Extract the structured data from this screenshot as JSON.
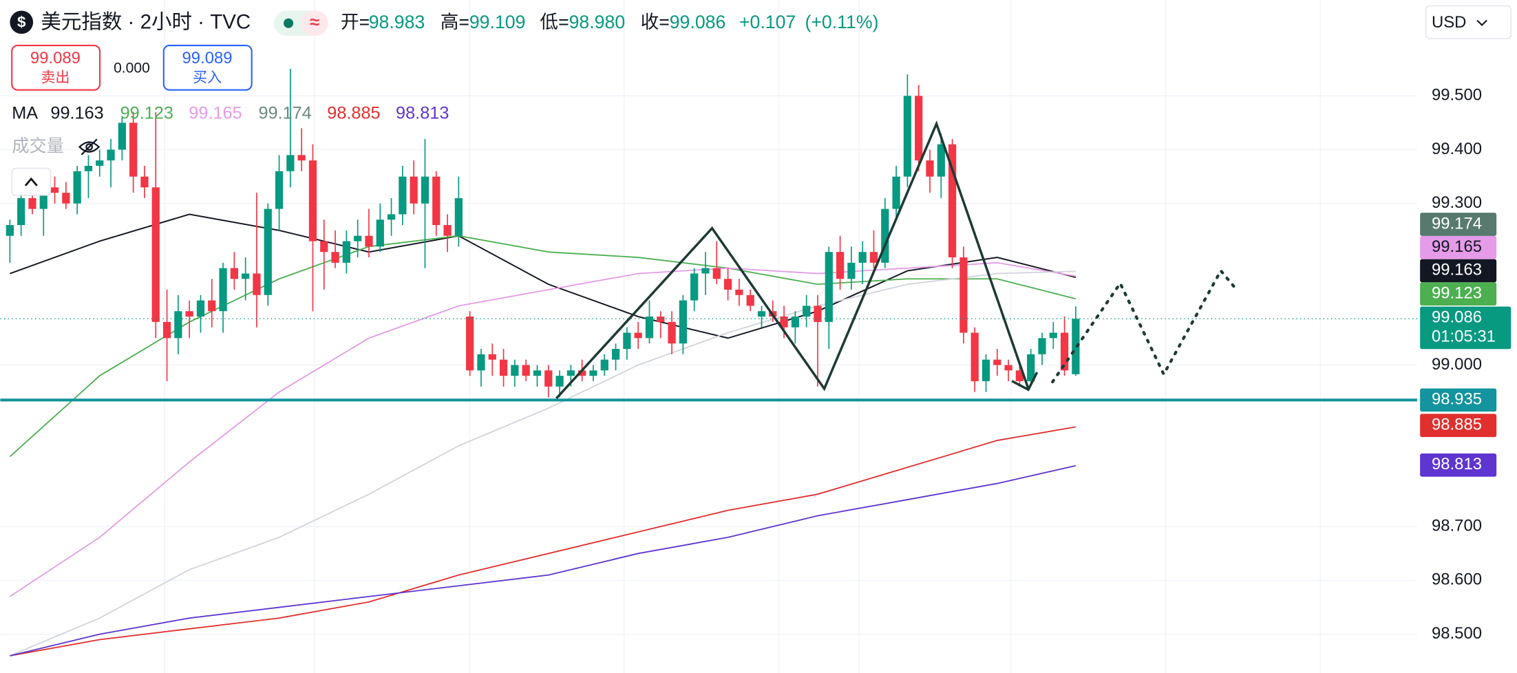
{
  "header": {
    "symbol": "美元指数 · 2小时 · TVC",
    "currency": "USD",
    "ohlc": [
      {
        "label": "开=",
        "value": "98.983"
      },
      {
        "label": "高=",
        "value": "99.109"
      },
      {
        "label": "低=",
        "value": "98.980"
      },
      {
        "label": "收=",
        "value": "99.086"
      }
    ],
    "change": "+0.107",
    "change_pct": "(+0.11%)",
    "sell": {
      "price": "99.089",
      "label": "卖出"
    },
    "spread": "0.000",
    "buy": {
      "price": "99.089",
      "label": "买入"
    },
    "ma_label": "MA",
    "volume_label": "成交量"
  },
  "chart_data": {
    "type": "candlestick",
    "up_color": "#089981",
    "down_color": "#f23645",
    "candles": [
      [
        99.24,
        99.27,
        99.19,
        99.26
      ],
      [
        99.26,
        99.33,
        99.24,
        99.31
      ],
      [
        99.31,
        99.36,
        99.28,
        99.29
      ],
      [
        99.29,
        99.34,
        99.24,
        99.33
      ],
      [
        99.33,
        99.35,
        99.3,
        99.32
      ],
      [
        99.32,
        99.34,
        99.29,
        99.3
      ],
      [
        99.3,
        99.37,
        99.28,
        99.36
      ],
      [
        99.36,
        99.39,
        99.31,
        99.37
      ],
      [
        99.37,
        99.4,
        99.35,
        99.38
      ],
      [
        99.38,
        99.42,
        99.33,
        99.4
      ],
      [
        99.4,
        99.46,
        99.38,
        99.45
      ],
      [
        99.45,
        99.47,
        99.32,
        99.35
      ],
      [
        99.35,
        99.37,
        99.31,
        99.33
      ],
      [
        99.33,
        99.47,
        99.05,
        99.08
      ],
      [
        99.08,
        99.14,
        98.97,
        99.05
      ],
      [
        99.05,
        99.13,
        99.02,
        99.1
      ],
      [
        99.1,
        99.12,
        99.05,
        99.09
      ],
      [
        99.09,
        99.13,
        99.06,
        99.12
      ],
      [
        99.12,
        99.16,
        99.07,
        99.1
      ],
      [
        99.1,
        99.19,
        99.06,
        99.18
      ],
      [
        99.18,
        99.21,
        99.14,
        99.16
      ],
      [
        99.16,
        99.2,
        99.12,
        99.17
      ],
      [
        99.17,
        99.32,
        99.07,
        99.13
      ],
      [
        99.13,
        99.3,
        99.11,
        99.29
      ],
      [
        99.29,
        99.39,
        99.25,
        99.36
      ],
      [
        99.36,
        99.55,
        99.33,
        99.39
      ],
      [
        99.39,
        99.44,
        99.36,
        99.38
      ],
      [
        99.38,
        99.41,
        99.1,
        99.23
      ],
      [
        99.23,
        99.27,
        99.14,
        99.21
      ],
      [
        99.21,
        99.25,
        99.18,
        99.19
      ],
      [
        99.19,
        99.25,
        99.17,
        99.23
      ],
      [
        99.23,
        99.27,
        99.2,
        99.24
      ],
      [
        99.24,
        99.29,
        99.2,
        99.22
      ],
      [
        99.22,
        99.3,
        99.21,
        99.27
      ],
      [
        99.27,
        99.31,
        99.24,
        99.28
      ],
      [
        99.28,
        99.37,
        99.26,
        99.35
      ],
      [
        99.35,
        99.38,
        99.28,
        99.3
      ],
      [
        99.3,
        99.42,
        99.18,
        99.35
      ],
      [
        99.35,
        99.36,
        99.24,
        99.26
      ],
      [
        99.26,
        99.28,
        99.21,
        99.24
      ],
      [
        99.24,
        99.35,
        99.22,
        99.31
      ],
      [
        99.09,
        99.1,
        98.98,
        98.99
      ],
      [
        98.99,
        99.03,
        98.96,
        99.02
      ],
      [
        99.02,
        99.04,
        98.98,
        99.01
      ],
      [
        99.01,
        99.03,
        98.96,
        98.98
      ],
      [
        98.98,
        99.01,
        98.96,
        99.0
      ],
      [
        99.0,
        99.01,
        98.97,
        98.98
      ],
      [
        98.98,
        99.0,
        98.96,
        98.99
      ],
      [
        98.99,
        99.0,
        98.94,
        98.96
      ],
      [
        98.96,
        98.99,
        98.94,
        98.98
      ],
      [
        98.98,
        99.0,
        98.96,
        98.99
      ],
      [
        98.99,
        99.01,
        98.97,
        98.98
      ],
      [
        98.98,
        99.0,
        98.97,
        98.99
      ],
      [
        98.99,
        99.02,
        98.98,
        99.01
      ],
      [
        99.01,
        99.04,
        98.99,
        99.03
      ],
      [
        99.03,
        99.07,
        99.01,
        99.06
      ],
      [
        99.06,
        99.08,
        99.03,
        99.05
      ],
      [
        99.05,
        99.12,
        99.04,
        99.09
      ],
      [
        99.09,
        99.1,
        99.05,
        99.08
      ],
      [
        99.08,
        99.1,
        99.02,
        99.04
      ],
      [
        99.04,
        99.13,
        99.02,
        99.12
      ],
      [
        99.12,
        99.18,
        99.1,
        99.17
      ],
      [
        99.17,
        99.21,
        99.13,
        99.18
      ],
      [
        99.18,
        99.23,
        99.15,
        99.16
      ],
      [
        99.16,
        99.18,
        99.12,
        99.14
      ],
      [
        99.14,
        99.16,
        99.11,
        99.13
      ],
      [
        99.13,
        99.14,
        99.1,
        99.11
      ],
      [
        99.09,
        99.11,
        99.07,
        99.1
      ],
      [
        99.1,
        99.12,
        99.08,
        99.09
      ],
      [
        99.09,
        99.11,
        99.05,
        99.07
      ],
      [
        99.07,
        99.1,
        99.04,
        99.09
      ],
      [
        99.09,
        99.13,
        99.07,
        99.11
      ],
      [
        99.11,
        99.13,
        98.96,
        99.08
      ],
      [
        99.08,
        99.22,
        99.03,
        99.21
      ],
      [
        99.21,
        99.24,
        99.14,
        99.16
      ],
      [
        99.16,
        99.22,
        99.14,
        99.19
      ],
      [
        99.19,
        99.23,
        99.15,
        99.21
      ],
      [
        99.21,
        99.25,
        99.18,
        99.19
      ],
      [
        99.19,
        99.31,
        99.18,
        99.29
      ],
      [
        99.29,
        99.37,
        99.27,
        99.35
      ],
      [
        99.35,
        99.54,
        99.33,
        99.5
      ],
      [
        99.5,
        99.52,
        99.36,
        99.38
      ],
      [
        99.38,
        99.4,
        99.32,
        99.35
      ],
      [
        99.35,
        99.43,
        99.31,
        99.41
      ],
      [
        99.41,
        99.42,
        99.18,
        99.2
      ],
      [
        99.2,
        99.22,
        99.04,
        99.06
      ],
      [
        99.06,
        99.07,
        98.95,
        98.97
      ],
      [
        98.97,
        99.02,
        98.95,
        99.01
      ],
      [
        99.01,
        99.03,
        98.98,
        99.0
      ],
      [
        99.0,
        99.01,
        98.97,
        98.99
      ],
      [
        98.99,
        99.0,
        98.96,
        98.97
      ],
      [
        98.97,
        99.03,
        98.96,
        99.02
      ],
      [
        99.02,
        99.06,
        99.0,
        99.05
      ],
      [
        99.05,
        99.08,
        99.03,
        99.06
      ],
      [
        99.06,
        99.09,
        98.98,
        98.99
      ],
      [
        98.983,
        99.109,
        98.98,
        99.086
      ]
    ],
    "x": [
      0,
      8,
      16,
      24,
      32,
      40,
      48,
      56,
      64,
      72,
      80,
      88,
      95
    ],
    "series": [
      {
        "color": "#131722",
        "values": [
          99.17,
          99.23,
          99.28,
          99.25,
          99.21,
          99.24,
          99.15,
          99.09,
          99.05,
          99.1,
          99.175,
          99.2,
          99.163
        ]
      },
      {
        "color": "#4caf50",
        "values": [
          98.83,
          98.98,
          99.08,
          99.16,
          99.22,
          99.24,
          99.21,
          99.2,
          99.18,
          99.15,
          99.16,
          99.16,
          99.123
        ]
      },
      {
        "color": "#e59be8",
        "values": [
          98.57,
          98.68,
          98.82,
          98.95,
          99.05,
          99.11,
          99.14,
          99.17,
          99.18,
          99.17,
          99.18,
          99.19,
          99.165
        ]
      },
      {
        "color": "#d1d4dc",
        "values": [
          98.46,
          98.53,
          98.62,
          98.68,
          98.76,
          98.85,
          98.92,
          99.0,
          99.06,
          99.11,
          99.15,
          99.17,
          99.174
        ]
      },
      {
        "color": "#e0302e",
        "values": [
          98.46,
          98.49,
          98.51,
          98.53,
          98.56,
          98.61,
          98.65,
          98.69,
          98.73,
          98.76,
          98.81,
          98.86,
          98.885
        ]
      },
      {
        "color": "#5e35d1",
        "values": [
          98.46,
          98.5,
          98.53,
          98.55,
          98.57,
          98.59,
          98.61,
          98.65,
          98.68,
          98.72,
          98.75,
          98.78,
          98.813
        ]
      }
    ],
    "level": {
      "value": 98.935,
      "color": "#13949e"
    },
    "countdown": "01:05:31",
    "xlim": [
      -0.86,
      125.43
    ],
    "ylim": [
      98.428,
      99.678
    ],
    "yticks": [
      {
        "value": 98.5,
        "label": "98.500"
      },
      {
        "value": 98.6,
        "label": "98.600"
      },
      {
        "value": 98.7,
        "label": "98.700"
      },
      {
        "value": 99.0,
        "label": "99.000"
      },
      {
        "value": 99.3,
        "label": "99.300"
      },
      {
        "value": 99.4,
        "label": "99.400"
      },
      {
        "value": 99.5,
        "label": "99.500"
      }
    ],
    "grid": true
  }
}
